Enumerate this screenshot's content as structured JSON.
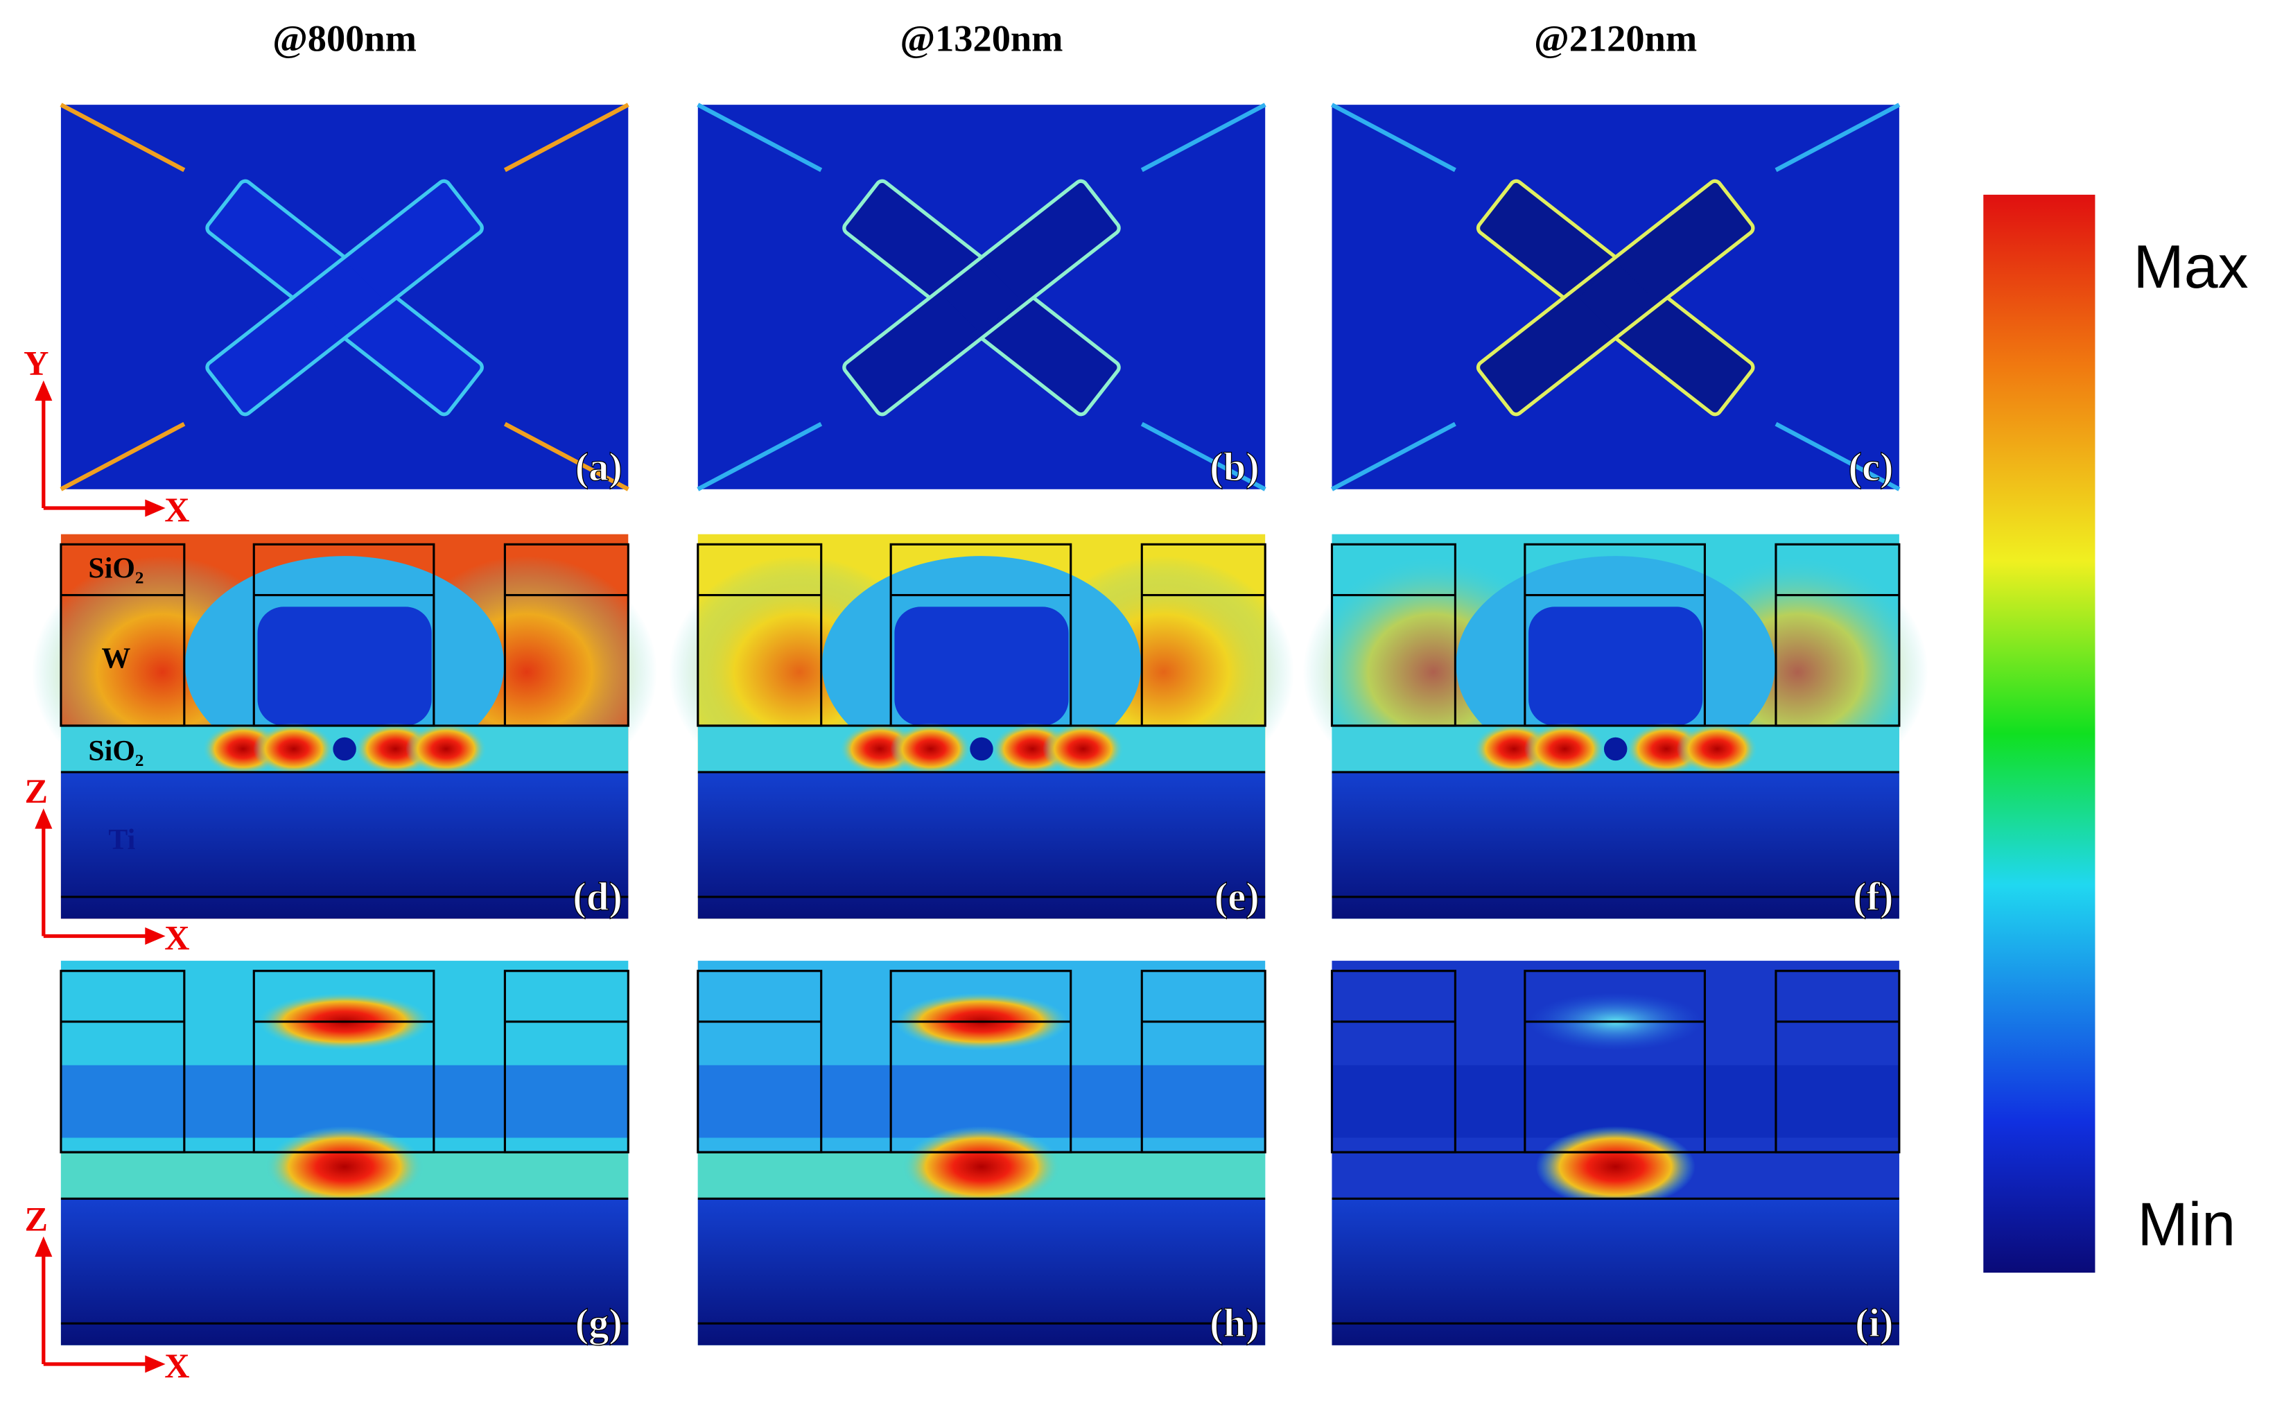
{
  "columns": [
    "@800nm",
    "@1320nm",
    "@2120nm"
  ],
  "panels": [
    "(a)",
    "(b)",
    "(c)",
    "(d)",
    "(e)",
    "(f)",
    "(g)",
    "(h)",
    "(i)"
  ],
  "axes": [
    [
      "Y",
      "X"
    ],
    [
      "Z",
      "X"
    ],
    [
      "Z",
      "X"
    ]
  ],
  "layers": [
    "SiO₂",
    "W",
    "SiO₂",
    "Ti"
  ],
  "colorbar": {
    "max": "Max",
    "min": "Min"
  }
}
